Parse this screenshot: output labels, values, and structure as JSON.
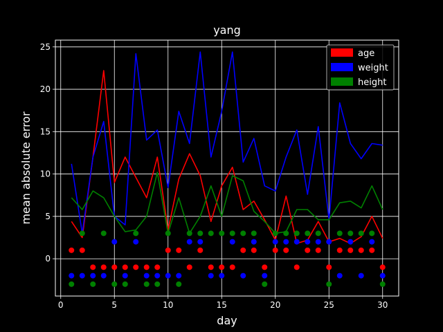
{
  "chart_data": {
    "type": "line",
    "title": "yang",
    "xlabel": "day",
    "ylabel": "mean absolute error",
    "xlim": [
      -0.5,
      31.5
    ],
    "ylim": [
      -4.4,
      25.8
    ],
    "xticks": [
      0,
      5,
      10,
      15,
      20,
      25,
      30
    ],
    "yticks": [
      0,
      5,
      10,
      15,
      20,
      25
    ],
    "grid": true,
    "legend_position": "top-right",
    "background": "#000000",
    "foreground": "#ffffff",
    "x": [
      1,
      2,
      3,
      4,
      5,
      6,
      7,
      8,
      9,
      10,
      11,
      12,
      13,
      14,
      15,
      16,
      17,
      18,
      19,
      20,
      21,
      22,
      23,
      24,
      25,
      26,
      27,
      28,
      29,
      30
    ],
    "series": [
      {
        "name": "age",
        "color": "#ff0000",
        "values": [
          4.4,
          2.5,
          12.0,
          22.2,
          9.0,
          12.0,
          9.6,
          7.2,
          12.0,
          3.4,
          9.4,
          12.4,
          9.8,
          4.4,
          8.6,
          10.8,
          5.8,
          6.8,
          4.6,
          2.2,
          7.4,
          1.8,
          2.2,
          4.4,
          2.0,
          2.4,
          1.8,
          2.6,
          5.0,
          2.4
        ],
        "markers": [
          1,
          1,
          -1,
          -1,
          -1,
          -1,
          -1,
          -1,
          -1,
          1,
          1,
          -1,
          1,
          -1,
          -1,
          -1,
          1,
          1,
          -1,
          1,
          1,
          -1,
          1,
          1,
          -1,
          1,
          1,
          1,
          1,
          -1
        ]
      },
      {
        "name": "weight",
        "color": "#0000ff",
        "values": [
          11.2,
          3.0,
          12.0,
          16.2,
          5.0,
          4.0,
          24.2,
          14.0,
          15.2,
          8.4,
          17.4,
          13.6,
          24.4,
          12.0,
          17.4,
          24.4,
          11.4,
          14.2,
          8.6,
          8.0,
          12.0,
          15.2,
          7.6,
          15.6,
          4.6,
          18.4,
          13.6,
          11.8,
          13.6,
          13.4
        ],
        "markers": [
          -2,
          -2,
          -2,
          -2,
          2,
          -2,
          2,
          -2,
          -2,
          -2,
          -2,
          2,
          2,
          -2,
          -2,
          2,
          -2,
          2,
          -2,
          2,
          2,
          2,
          2,
          2,
          2,
          -2,
          2,
          -2,
          2,
          -2
        ]
      },
      {
        "name": "height",
        "color": "#008000",
        "values": [
          7.2,
          5.8,
          8.0,
          7.2,
          5.0,
          3.2,
          3.4,
          5.0,
          10.2,
          3.0,
          7.2,
          3.0,
          5.0,
          8.6,
          5.0,
          9.8,
          9.2,
          5.6,
          4.4,
          3.0,
          3.2,
          5.8,
          5.8,
          4.6,
          4.6,
          6.6,
          6.8,
          6.0,
          8.6,
          5.8
        ],
        "markers": [
          -3,
          3,
          -3,
          3,
          -3,
          -3,
          3,
          -3,
          -3,
          3,
          -3,
          3,
          3,
          3,
          3,
          3,
          3,
          3,
          -3,
          3,
          3,
          3,
          3,
          3,
          -3,
          3,
          3,
          3,
          3,
          -3
        ]
      }
    ]
  }
}
